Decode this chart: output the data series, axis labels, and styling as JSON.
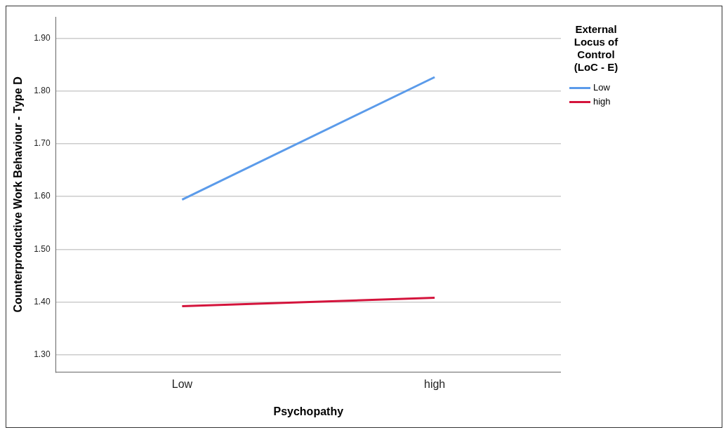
{
  "chart_data": {
    "type": "line",
    "xlabel": "Psychopathy",
    "ylabel": "Counterproductive Work Behaviour - Type D",
    "legend_title": "External Locus of Control (LoC - E)",
    "categories": [
      "Low",
      "high"
    ],
    "series": [
      {
        "name": "Low",
        "color": "#5b9bea",
        "values": [
          1.594,
          1.826
        ]
      },
      {
        "name": "high",
        "color": "#d4143c",
        "values": [
          1.392,
          1.408
        ]
      }
    ],
    "ylim": [
      1.267,
      1.94
    ],
    "yticks": [
      {
        "value": 1.3,
        "label": "1.30"
      },
      {
        "value": 1.4,
        "label": "1.40"
      },
      {
        "value": 1.5,
        "label": "1.50"
      },
      {
        "value": 1.6,
        "label": "1.60"
      },
      {
        "value": 1.7,
        "label": "1.70"
      },
      {
        "value": 1.8,
        "label": "1.80"
      },
      {
        "value": 1.9,
        "label": "1.90"
      }
    ],
    "grid": "y",
    "legend": "top right",
    "marker": "none",
    "line_style": "solid"
  }
}
